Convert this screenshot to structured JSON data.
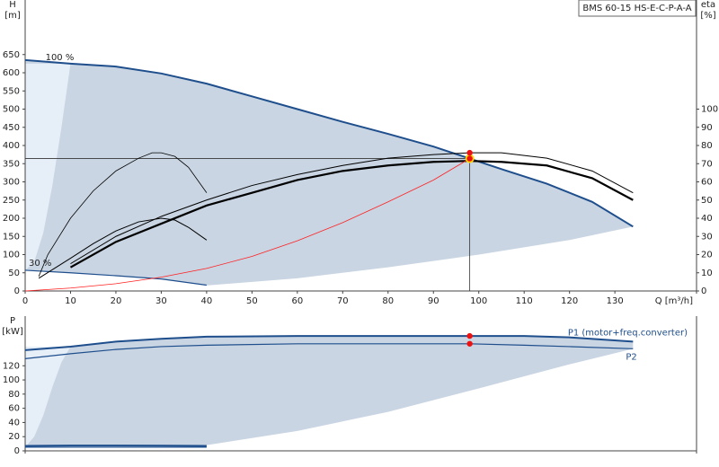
{
  "chart_data": [
    {
      "type": "line",
      "title": "BMS 60-15 HS-E-C-P-A-A",
      "ylabel": "H",
      "yunit": "[m]",
      "y2label": "eta",
      "y2unit": "[%]",
      "xlabel": "Q [m³/h]",
      "xlim": [
        0,
        148
      ],
      "ylim": [
        0,
        800
      ],
      "y2lim": [
        0,
        160
      ],
      "xticks": [
        0,
        10,
        20,
        30,
        40,
        50,
        60,
        70,
        80,
        90,
        100,
        110,
        120,
        130
      ],
      "yticks": [
        0,
        50,
        100,
        150,
        200,
        250,
        300,
        350,
        400,
        450,
        500,
        550,
        600,
        650
      ],
      "y2ticks": [
        0,
        10,
        20,
        30,
        40,
        50,
        60,
        70,
        80,
        90,
        100
      ],
      "annotations": [
        "100 %",
        "30 %"
      ],
      "area": {
        "color": "#c9d5e3",
        "x": [
          40,
          60,
          80,
          100,
          120,
          134
        ],
        "values": [
          15,
          35,
          65,
          100,
          140,
          177
        ]
      },
      "left_band": {
        "color": "#e6eef8",
        "x": [
          0,
          2,
          4,
          6,
          8,
          10
        ],
        "values": [
          57,
          80,
          160,
          290,
          450,
          625
        ]
      },
      "series": [
        {
          "color": "#1e4e8c",
          "width": 2,
          "x": [
            0,
            10,
            20,
            30,
            40,
            50,
            60,
            70,
            80,
            90,
            98,
            105,
            115,
            125,
            134
          ],
          "values": [
            635,
            625,
            617,
            598,
            570,
            535,
            500,
            465,
            432,
            397,
            364,
            335,
            295,
            245,
            177
          ]
        },
        {
          "color": "#1e4e8c",
          "width": 1.2,
          "x": [
            0,
            10,
            20,
            30,
            40
          ],
          "values": [
            57,
            50,
            42,
            33,
            16
          ]
        },
        {
          "color": "#000000",
          "width": 2.2,
          "axis": "y2",
          "x": [
            10,
            20,
            30,
            40,
            50,
            60,
            70,
            80,
            90,
            98,
            105,
            115,
            125,
            134
          ],
          "values": [
            13,
            27,
            37,
            47,
            54,
            61,
            66,
            69,
            71,
            71.5,
            71,
            69,
            62,
            50
          ]
        },
        {
          "color": "#000000",
          "width": 1,
          "axis": "y2",
          "x": [
            10,
            20,
            30,
            40,
            50,
            60,
            70,
            80,
            90,
            98,
            105,
            115,
            125,
            134
          ],
          "values": [
            15,
            30,
            41,
            50,
            58,
            64,
            69,
            73,
            75,
            76,
            76,
            73,
            66,
            54
          ]
        },
        {
          "color": "#000000",
          "width": 0.8,
          "axis": "y2",
          "x": [
            3,
            5,
            10,
            15,
            20,
            25,
            28,
            30,
            33,
            36,
            40
          ],
          "values": [
            8,
            20,
            40,
            55,
            66,
            73,
            76,
            76,
            74,
            68,
            54
          ]
        },
        {
          "color": "#000000",
          "width": 1,
          "axis": "y2",
          "x": [
            3,
            10,
            15,
            20,
            25,
            30,
            33,
            36,
            40
          ],
          "values": [
            7,
            18,
            26,
            33,
            38,
            40,
            39,
            35,
            28
          ]
        },
        {
          "color": "#ff2020",
          "width": 0.8,
          "x": [
            0,
            10,
            20,
            30,
            40,
            50,
            60,
            70,
            80,
            90,
            98
          ],
          "values": [
            0,
            8,
            20,
            38,
            62,
            95,
            138,
            188,
            245,
            305,
            364
          ]
        }
      ],
      "duty_point": {
        "x": 98,
        "y": 364,
        "y2": 76,
        "color": "#ee1111"
      }
    },
    {
      "type": "line",
      "ylabel": "P",
      "yunit": "[kW]",
      "xlim": [
        0,
        148
      ],
      "ylim": [
        0,
        190
      ],
      "yticks": [
        0,
        20,
        40,
        60,
        80,
        100,
        120
      ],
      "area": {
        "color": "#c9d5e3",
        "x": [
          40,
          60,
          80,
          100,
          120,
          134
        ],
        "values": [
          8,
          28,
          55,
          88,
          122,
          144
        ]
      },
      "left_band": {
        "color": "#e6eef8",
        "x": [
          0,
          2,
          4,
          6,
          8,
          10
        ],
        "values": [
          5,
          20,
          50,
          90,
          125,
          147
        ]
      },
      "series": [
        {
          "name": "P1 (motor+freq.converter)",
          "color": "#1e4e8c",
          "width": 2,
          "x": [
            0,
            10,
            20,
            30,
            40,
            60,
            80,
            98,
            110,
            120,
            134
          ],
          "values": [
            142,
            147,
            154,
            158,
            161,
            162,
            162,
            162,
            162,
            160,
            154
          ]
        },
        {
          "name": "P2",
          "color": "#1e4e8c",
          "width": 1.2,
          "x": [
            0,
            10,
            20,
            30,
            40,
            60,
            98,
            110,
            120,
            134
          ],
          "values": [
            130,
            137,
            143,
            147,
            149,
            151,
            151,
            149,
            147,
            144
          ]
        },
        {
          "color": "#1e4e8c",
          "width": 2,
          "x": [
            0,
            10,
            20,
            30,
            40
          ],
          "values": [
            7,
            7.5,
            7.5,
            7.3,
            7
          ]
        },
        {
          "color": "#1e4e8c",
          "width": 1,
          "x": [
            0,
            10,
            20,
            30,
            40
          ],
          "values": [
            5,
            5,
            5,
            5,
            5
          ]
        }
      ],
      "duty_point": {
        "x": 98,
        "y": 162,
        "y2": 151,
        "color": "#ee1111"
      }
    }
  ]
}
